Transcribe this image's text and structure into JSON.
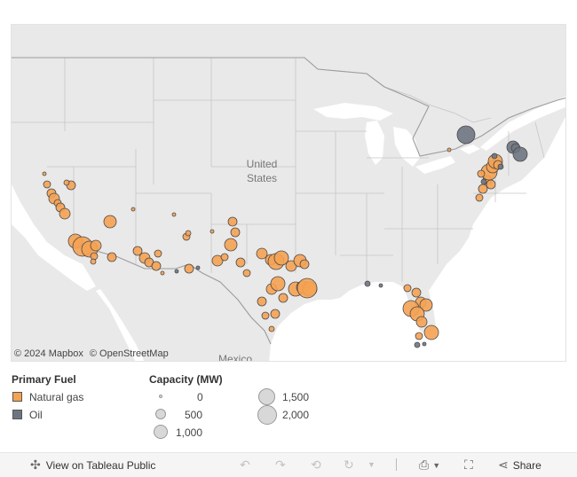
{
  "map": {
    "attribution_mapbox": "© 2024 Mapbox",
    "attribution_osm": "© OpenStreetMap",
    "label_us_line1": "United",
    "label_us_line2": "States",
    "label_mexico": "Mexico",
    "colors": {
      "natural_gas": "#f5a253",
      "oil": "#6e7582",
      "land": "#e9e9e9",
      "water": "#ffffff",
      "borders": "#bfbfbf"
    }
  },
  "legend": {
    "fuel_title": "Primary Fuel",
    "fuel_items": [
      {
        "label": "Natural gas",
        "color": "#f5a253"
      },
      {
        "label": "Oil",
        "color": "#6e7582"
      }
    ],
    "capacity_title": "Capacity (MW)",
    "capacity_items": [
      {
        "label": "0",
        "value": 0
      },
      {
        "label": "500",
        "value": 500
      },
      {
        "label": "1,000",
        "value": 1000
      },
      {
        "label": "1,500",
        "value": 1500
      },
      {
        "label": "2,000",
        "value": 2000
      }
    ]
  },
  "toolbar": {
    "view_label": "View on Tableau Public",
    "share_label": "Share",
    "icons": [
      "tableau-icon",
      "undo-icon",
      "redo-icon",
      "revert-icon",
      "refresh-icon",
      "pause-dropdown-icon",
      "download-icon",
      "fullscreen-icon",
      "share-icon"
    ]
  }
}
